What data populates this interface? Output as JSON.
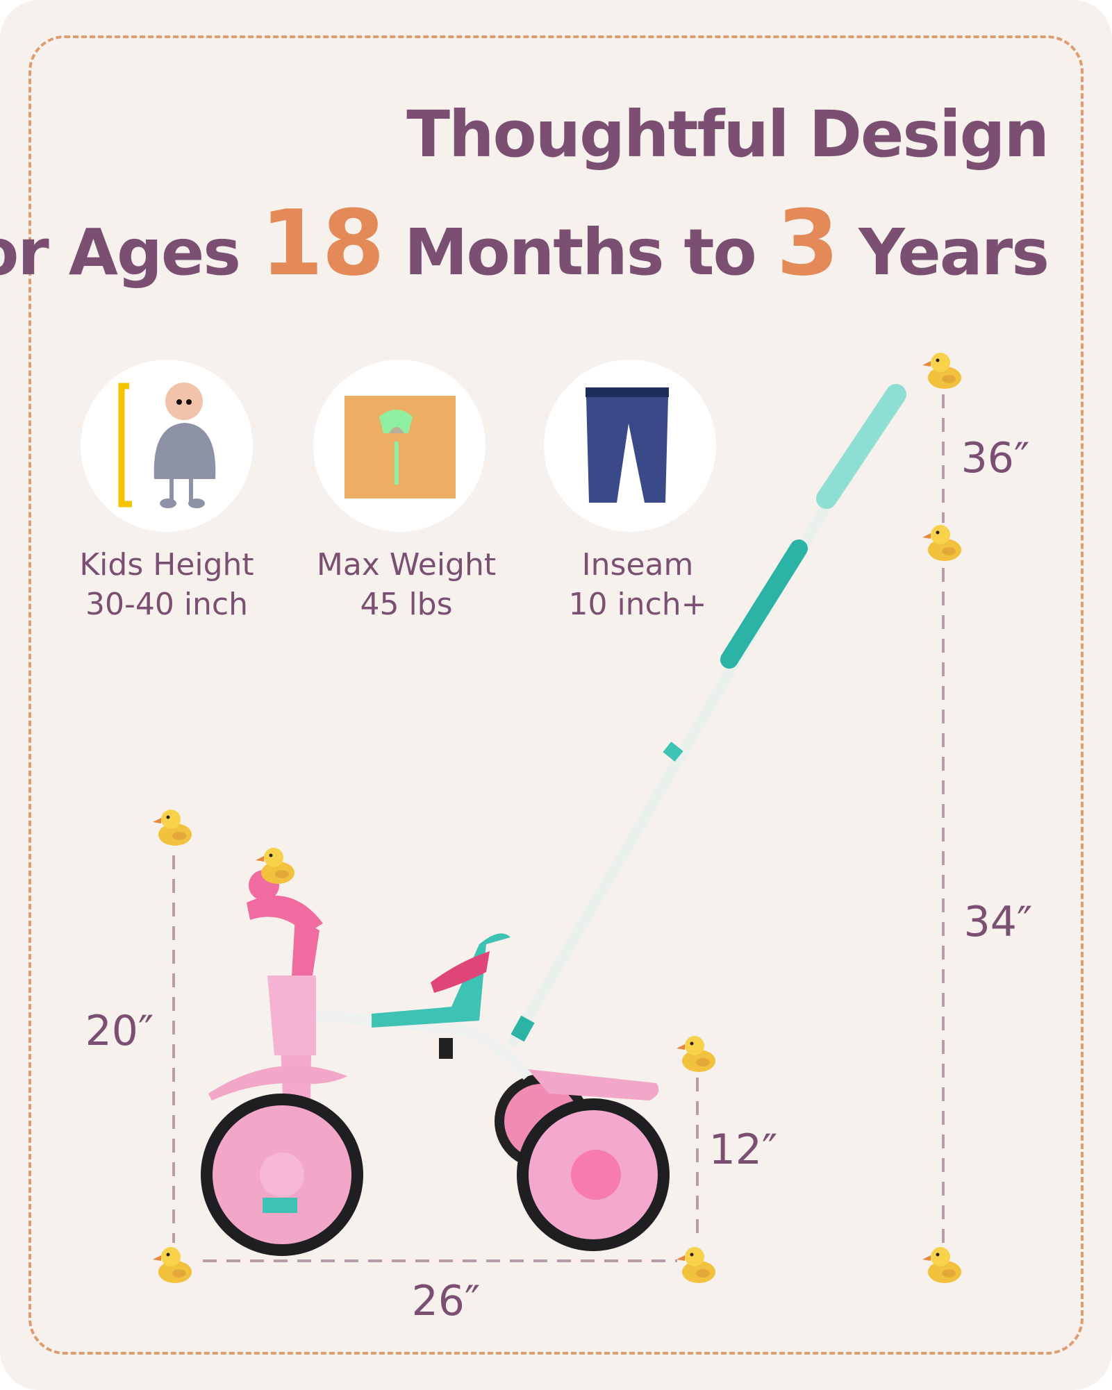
{
  "header": {
    "title_line1": "Thoughtful Design",
    "title_line2_prefix": "for Ages",
    "title_min_age": "18",
    "title_middle": "Months to",
    "title_max_age": "3",
    "title_suffix": "Years"
  },
  "specs": [
    {
      "icon": "child-height-icon",
      "label": "Kids Height",
      "value": "30-40 inch"
    },
    {
      "icon": "weight-scale-icon",
      "label": "Max Weight",
      "value": "45 lbs"
    },
    {
      "icon": "pants-icon",
      "label": "Inseam",
      "value": "10 inch+"
    }
  ],
  "dimensions": {
    "seat_height": "20″",
    "length": "26″",
    "rear_height": "12″",
    "handle_extension": "36″",
    "handle_height": "34″"
  },
  "colors": {
    "background": "#f6f1ec",
    "title": "#7a4f72",
    "accent": "#e38a58",
    "border": "#de9c72"
  }
}
